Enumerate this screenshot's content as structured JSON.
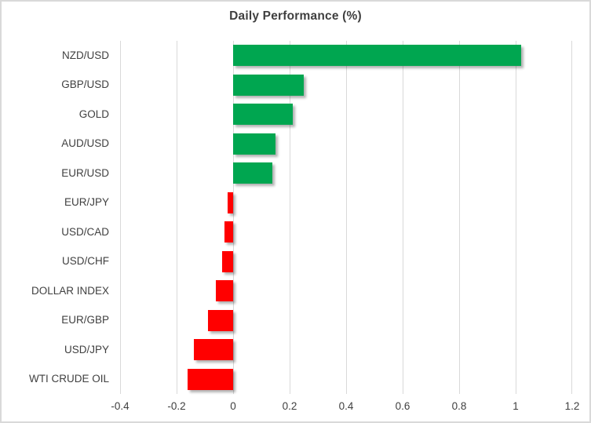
{
  "chart_data": {
    "type": "bar",
    "orientation": "horizontal",
    "title": "Daily Performance (%)",
    "categories": [
      "NZD/USD",
      "GBP/USD",
      "GOLD",
      "AUD/USD",
      "EUR/USD",
      "EUR/JPY",
      "USD/CAD",
      "USD/CHF",
      "DOLLAR INDEX",
      "EUR/GBP",
      "USD/JPY",
      "WTI CRUDE OIL"
    ],
    "values": [
      1.02,
      0.25,
      0.21,
      0.15,
      0.14,
      -0.02,
      -0.03,
      -0.04,
      -0.06,
      -0.09,
      -0.14,
      -0.16
    ],
    "xlim": [
      -0.4,
      1.2
    ],
    "xticks": [
      -0.4,
      -0.2,
      0,
      0.2,
      0.4,
      0.6,
      0.8,
      1,
      1.2
    ],
    "xtick_labels": [
      "-0.4",
      "-0.2",
      "0",
      "0.2",
      "0.4",
      "0.6",
      "0.8",
      "1",
      "1.2"
    ],
    "grid": true,
    "legend": "none",
    "positive_color": "#00a650",
    "negative_color": "#ff0000",
    "gridline_color": "#d9d9d9",
    "text_color": "#404040"
  }
}
